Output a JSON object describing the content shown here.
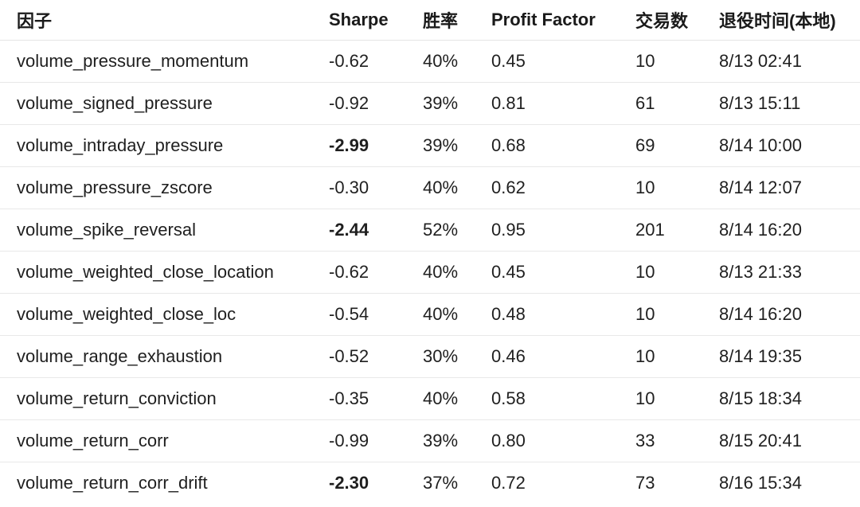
{
  "table": {
    "headers": {
      "factor": "因子",
      "sharpe": "Sharpe",
      "win_rate": "胜率",
      "profit_factor": "Profit Factor",
      "trades": "交易数",
      "retire_time": "退役时间(本地)"
    },
    "rows": [
      {
        "factor": "volume_pressure_momentum",
        "sharpe": "-0.62",
        "sharpe_bold": false,
        "win_rate": "40%",
        "profit_factor": "0.45",
        "trades": "10",
        "retire_time": "8/13 02:41"
      },
      {
        "factor": "volume_signed_pressure",
        "sharpe": "-0.92",
        "sharpe_bold": false,
        "win_rate": "39%",
        "profit_factor": "0.81",
        "trades": "61",
        "retire_time": "8/13 15:11"
      },
      {
        "factor": "volume_intraday_pressure",
        "sharpe": "-2.99",
        "sharpe_bold": true,
        "win_rate": "39%",
        "profit_factor": "0.68",
        "trades": "69",
        "retire_time": "8/14 10:00"
      },
      {
        "factor": "volume_pressure_zscore",
        "sharpe": "-0.30",
        "sharpe_bold": false,
        "win_rate": "40%",
        "profit_factor": "0.62",
        "trades": "10",
        "retire_time": "8/14 12:07"
      },
      {
        "factor": "volume_spike_reversal",
        "sharpe": "-2.44",
        "sharpe_bold": true,
        "win_rate": "52%",
        "profit_factor": "0.95",
        "trades": "201",
        "retire_time": "8/14 16:20"
      },
      {
        "factor": "volume_weighted_close_location",
        "sharpe": "-0.62",
        "sharpe_bold": false,
        "win_rate": "40%",
        "profit_factor": "0.45",
        "trades": "10",
        "retire_time": "8/13 21:33"
      },
      {
        "factor": "volume_weighted_close_loc",
        "sharpe": "-0.54",
        "sharpe_bold": false,
        "win_rate": "40%",
        "profit_factor": "0.48",
        "trades": "10",
        "retire_time": "8/14 16:20"
      },
      {
        "factor": "volume_range_exhaustion",
        "sharpe": "-0.52",
        "sharpe_bold": false,
        "win_rate": "30%",
        "profit_factor": "0.46",
        "trades": "10",
        "retire_time": "8/14 19:35"
      },
      {
        "factor": "volume_return_conviction",
        "sharpe": "-0.35",
        "sharpe_bold": false,
        "win_rate": "40%",
        "profit_factor": "0.58",
        "trades": "10",
        "retire_time": "8/15 18:34"
      },
      {
        "factor": "volume_return_corr",
        "sharpe": "-0.99",
        "sharpe_bold": false,
        "win_rate": "39%",
        "profit_factor": "0.80",
        "trades": "33",
        "retire_time": "8/15 20:41"
      },
      {
        "factor": "volume_return_corr_drift",
        "sharpe": "-2.30",
        "sharpe_bold": true,
        "win_rate": "37%",
        "profit_factor": "0.72",
        "trades": "73",
        "retire_time": "8/16 15:34"
      }
    ]
  }
}
